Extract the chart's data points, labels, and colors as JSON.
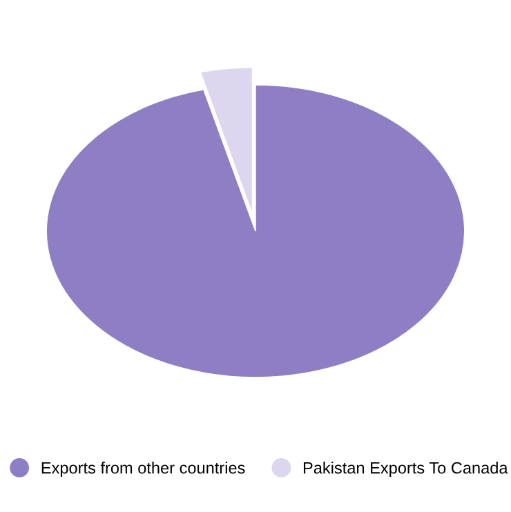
{
  "chart_data": {
    "type": "pie",
    "categories": [
      "Exports from other countries",
      "Pakistan Exports To Canada"
    ],
    "values": [
      96,
      4
    ],
    "colors": [
      "#8e7fc4",
      "#dcd6ee"
    ],
    "legend": "bottom"
  }
}
